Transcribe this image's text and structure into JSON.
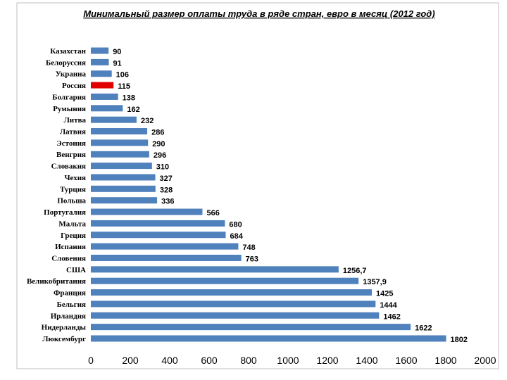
{
  "chart_data": {
    "type": "bar",
    "orientation": "horizontal",
    "title": "Минимальный размер оплаты труда в ряде стран, евро в месяц (2012 год)",
    "xlabel": "",
    "ylabel": "",
    "xlim": [
      0,
      2000
    ],
    "ticks": [
      0,
      200,
      400,
      600,
      800,
      1000,
      1200,
      1400,
      1600,
      1800,
      2000
    ],
    "categories": [
      "Казахстан",
      "Белоруссия",
      "Украина",
      "Россия",
      "Болгария",
      "Румыния",
      "Литва",
      "Латвия",
      "Эстония",
      "Венгрия",
      "Словакия",
      "Чехия",
      "Турция",
      "Польша",
      "Португалия",
      "Мальта",
      "Греция",
      "Испания",
      "Словения",
      "США",
      "Великобритания",
      "Франция",
      "Бельгия",
      "Ирландия",
      "Нидерланды",
      "Люксембург"
    ],
    "values": [
      90,
      91,
      106,
      115,
      138,
      162,
      232,
      286,
      290,
      296,
      310,
      327,
      328,
      336,
      566,
      680,
      684,
      748,
      763,
      1256.7,
      1357.9,
      1425,
      1444,
      1462,
      1622,
      1802
    ],
    "value_labels": [
      "90",
      "91",
      "106",
      "115",
      "138",
      "162",
      "232",
      "286",
      "290",
      "296",
      "310",
      "327",
      "328",
      "336",
      "566",
      "680",
      "684",
      "748",
      "763",
      "1256,7",
      "1357,9",
      "1425",
      "1444",
      "1462",
      "1622",
      "1802"
    ],
    "highlight_category": "Россия",
    "colors": {
      "bar": "#4f81bd",
      "highlight": "#e00000",
      "border": "#bfbfbf"
    }
  }
}
